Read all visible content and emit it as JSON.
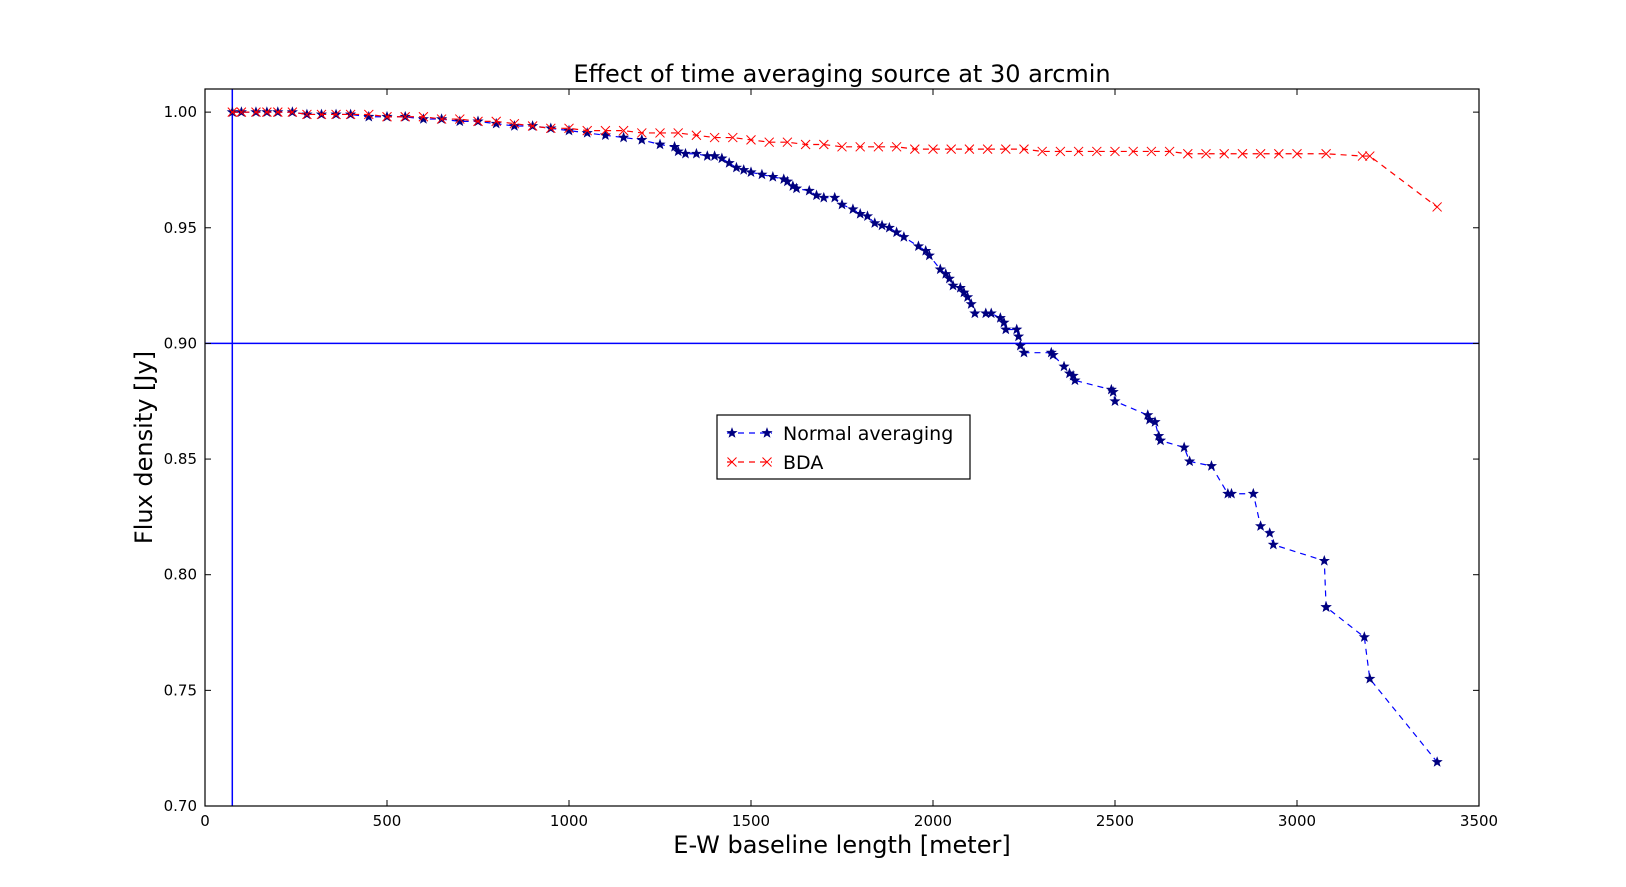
{
  "chart_data": {
    "type": "line",
    "title": "Effect of time averaging source at 30 arcmin",
    "xlabel": "E-W baseline length [meter]",
    "ylabel": "Flux density [Jy]",
    "xlim": [
      0,
      3500
    ],
    "ylim": [
      0.7,
      1.01
    ],
    "xticks": [
      0,
      500,
      1000,
      1500,
      2000,
      2500,
      3000,
      3500
    ],
    "xtick_labels": [
      "0",
      "500",
      "1000",
      "1500",
      "2000",
      "2500",
      "3000",
      "3500"
    ],
    "yticks": [
      0.7,
      0.75,
      0.8,
      0.85,
      0.9,
      0.95,
      1.0
    ],
    "ytick_labels": [
      "0.70",
      "0.75",
      "0.80",
      "0.85",
      "0.90",
      "0.95",
      "1.00"
    ],
    "grid": false,
    "legend_position": "center",
    "reference_lines": [
      {
        "orientation": "horizontal",
        "value": 0.9,
        "color": "#0000ff"
      },
      {
        "orientation": "vertical",
        "value": 75,
        "color": "#0000ff"
      }
    ],
    "series": [
      {
        "name": "Normal averaging",
        "color": "#0000ff",
        "marker_color": "#000080",
        "marker": "star",
        "linestyle": "dashed",
        "x": [
          75,
          100,
          140,
          170,
          200,
          240,
          280,
          320,
          360,
          400,
          450,
          500,
          550,
          600,
          650,
          700,
          750,
          800,
          850,
          900,
          950,
          1000,
          1050,
          1100,
          1150,
          1200,
          1250,
          1290,
          1300,
          1320,
          1350,
          1380,
          1400,
          1420,
          1440,
          1460,
          1480,
          1500,
          1530,
          1560,
          1590,
          1600,
          1615,
          1625,
          1660,
          1680,
          1700,
          1730,
          1750,
          1780,
          1800,
          1820,
          1840,
          1860,
          1880,
          1900,
          1920,
          1960,
          1980,
          1990,
          2020,
          2035,
          2045,
          2055,
          2075,
          2085,
          2095,
          2105,
          2115,
          2145,
          2160,
          2185,
          2195,
          2200,
          2230,
          2235,
          2240,
          2250,
          2325,
          2330,
          2360,
          2375,
          2385,
          2390,
          2490,
          2495,
          2500,
          2590,
          2595,
          2610,
          2620,
          2625,
          2690,
          2705,
          2765,
          2810,
          2820,
          2880,
          2900,
          2925,
          2935,
          3075,
          3080,
          3080,
          3185,
          3200,
          3385
        ],
        "y": [
          1.0,
          1.0,
          1.0,
          1.0,
          1.0,
          1.0,
          0.999,
          0.999,
          0.999,
          0.999,
          0.998,
          0.998,
          0.998,
          0.997,
          0.997,
          0.996,
          0.996,
          0.995,
          0.994,
          0.994,
          0.993,
          0.992,
          0.991,
          0.99,
          0.989,
          0.988,
          0.986,
          0.985,
          0.983,
          0.982,
          0.982,
          0.981,
          0.981,
          0.98,
          0.978,
          0.976,
          0.975,
          0.974,
          0.973,
          0.972,
          0.971,
          0.97,
          0.968,
          0.967,
          0.966,
          0.964,
          0.963,
          0.963,
          0.96,
          0.958,
          0.956,
          0.955,
          0.952,
          0.951,
          0.95,
          0.948,
          0.946,
          0.942,
          0.94,
          0.938,
          0.932,
          0.93,
          0.928,
          0.925,
          0.924,
          0.922,
          0.92,
          0.917,
          0.913,
          0.913,
          0.913,
          0.911,
          0.909,
          0.906,
          0.906,
          0.903,
          0.899,
          0.896,
          0.896,
          0.895,
          0.89,
          0.887,
          0.886,
          0.884,
          0.88,
          0.879,
          0.875,
          0.869,
          0.867,
          0.866,
          0.86,
          0.858,
          0.855,
          0.849,
          0.847,
          0.835,
          0.835,
          0.835,
          0.821,
          0.818,
          0.813,
          0.806,
          0.786,
          0.786,
          0.773,
          0.755,
          0.719
        ]
      },
      {
        "name": "BDA",
        "color": "#ff0000",
        "marker_color": "#ff0000",
        "marker": "x",
        "linestyle": "dashed",
        "x": [
          75,
          100,
          140,
          170,
          200,
          240,
          280,
          320,
          360,
          400,
          450,
          500,
          550,
          600,
          650,
          700,
          750,
          800,
          850,
          900,
          950,
          1000,
          1050,
          1100,
          1150,
          1200,
          1250,
          1300,
          1350,
          1400,
          1450,
          1500,
          1550,
          1600,
          1650,
          1700,
          1750,
          1800,
          1850,
          1900,
          1950,
          2000,
          2050,
          2100,
          2150,
          2200,
          2250,
          2300,
          2350,
          2400,
          2450,
          2500,
          2550,
          2600,
          2650,
          2700,
          2750,
          2800,
          2850,
          2900,
          2950,
          3000,
          3080,
          3180,
          3200,
          3385
        ],
        "y": [
          1.0,
          1.0,
          1.0,
          1.0,
          1.0,
          1.0,
          0.999,
          0.999,
          0.999,
          0.999,
          0.999,
          0.998,
          0.998,
          0.998,
          0.997,
          0.997,
          0.996,
          0.996,
          0.995,
          0.994,
          0.993,
          0.993,
          0.992,
          0.992,
          0.992,
          0.991,
          0.991,
          0.991,
          0.99,
          0.989,
          0.989,
          0.988,
          0.987,
          0.987,
          0.986,
          0.986,
          0.985,
          0.985,
          0.985,
          0.985,
          0.984,
          0.984,
          0.984,
          0.984,
          0.984,
          0.984,
          0.984,
          0.983,
          0.983,
          0.983,
          0.983,
          0.983,
          0.983,
          0.983,
          0.983,
          0.982,
          0.982,
          0.982,
          0.982,
          0.982,
          0.982,
          0.982,
          0.982,
          0.981,
          0.981,
          0.959
        ]
      }
    ]
  }
}
